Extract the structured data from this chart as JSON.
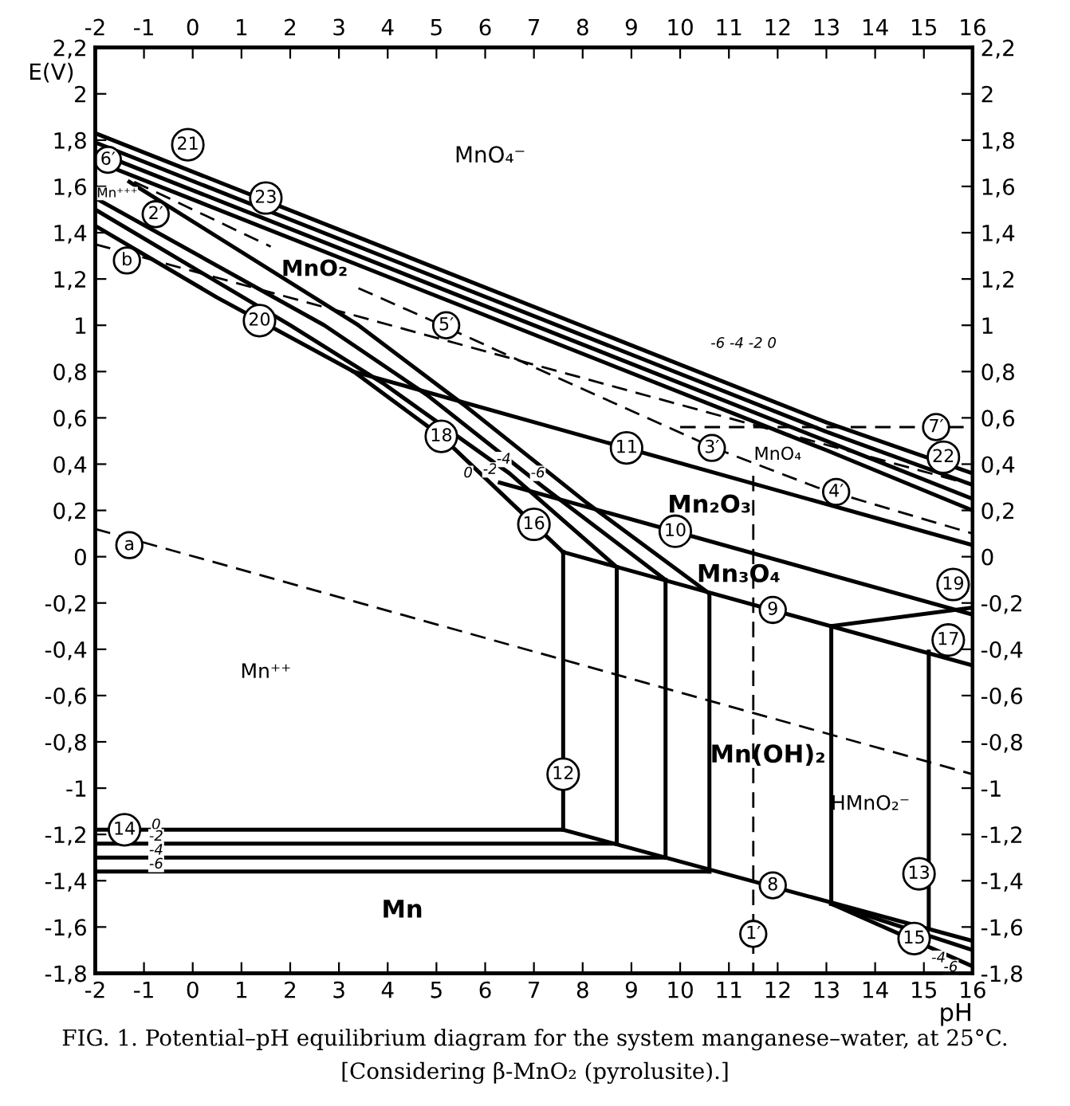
{
  "chart_data": {
    "type": "line",
    "xlabel": "pH",
    "ylabel": "E(V)",
    "xlim": [
      -2,
      16
    ],
    "xticks": [
      -2,
      -1,
      0,
      1,
      2,
      3,
      4,
      5,
      6,
      7,
      8,
      9,
      10,
      11,
      12,
      13,
      14,
      15,
      16
    ],
    "x2lim": [
      -2,
      16
    ],
    "x2ticks": [
      -2,
      -1,
      0,
      1,
      2,
      3,
      4,
      5,
      6,
      7,
      8,
      9,
      10,
      11,
      12,
      13,
      14,
      15,
      16
    ],
    "ylim": [
      -1.8,
      2.2
    ],
    "yticks": [
      {
        "value": -1.8,
        "label": "-1,8"
      },
      {
        "value": -1.6,
        "label": "-1,6"
      },
      {
        "value": -1.4,
        "label": "-1,4"
      },
      {
        "value": -1.2,
        "label": "-1,2"
      },
      {
        "value": -1,
        "label": "-1"
      },
      {
        "value": -0.8,
        "label": "-0,8"
      },
      {
        "value": -0.6,
        "label": "-0,6"
      },
      {
        "value": -0.4,
        "label": "-0,4"
      },
      {
        "value": -0.2,
        "label": "-0,2"
      },
      {
        "value": 0,
        "label": "0"
      },
      {
        "value": 0.2,
        "label": "0,2"
      },
      {
        "value": 0.4,
        "label": "0,4"
      },
      {
        "value": 0.6,
        "label": "0,6"
      },
      {
        "value": 0.8,
        "label": "0,8"
      },
      {
        "value": 1,
        "label": "1"
      },
      {
        "value": 1.2,
        "label": "1,2"
      },
      {
        "value": 1.4,
        "label": "1,4"
      },
      {
        "value": 1.6,
        "label": "1,6"
      },
      {
        "value": 1.8,
        "label": "1,8"
      },
      {
        "value": 2,
        "label": "2"
      },
      {
        "value": 2.2,
        "label": "2,2"
      }
    ],
    "y2lim": [
      -1.8,
      2.2
    ],
    "y2ticks": [
      {
        "value": -1.8,
        "label": "-1,8"
      },
      {
        "value": -1.6,
        "label": "-1,6"
      },
      {
        "value": -1.4,
        "label": "-1,4"
      },
      {
        "value": -1.2,
        "label": "-1,2"
      },
      {
        "value": -1,
        "label": "-1"
      },
      {
        "value": -0.8,
        "label": "-0,8"
      },
      {
        "value": -0.6,
        "label": "-0,6"
      },
      {
        "value": -0.4,
        "label": "-0,4"
      },
      {
        "value": -0.2,
        "label": "-0,2"
      },
      {
        "value": 0,
        "label": "0"
      },
      {
        "value": 0.2,
        "label": "0,2"
      },
      {
        "value": 0.4,
        "label": "0,4"
      },
      {
        "value": 0.6,
        "label": "0,6"
      },
      {
        "value": 0.8,
        "label": "0,8"
      },
      {
        "value": 1,
        "label": "1"
      },
      {
        "value": 1.2,
        "label": "1,2"
      },
      {
        "value": 1.4,
        "label": "1,4"
      },
      {
        "value": 1.6,
        "label": "1,6"
      },
      {
        "value": 1.8,
        "label": "1,8"
      },
      {
        "value": 2,
        "label": "2"
      },
      {
        "value": 2.2,
        "label": "2,2"
      }
    ],
    "grid": false,
    "legend": false,
    "marker": "none",
    "series": [
      {
        "color": "#000000",
        "line_style": "solid",
        "x": [
          -2,
          13,
          16
        ],
        "values": [
          1.83,
          0.58,
          0.36
        ]
      },
      {
        "color": "#000000",
        "line_style": "solid",
        "x": [
          -2,
          13,
          16
        ],
        "values": [
          1.79,
          0.54,
          0.31
        ]
      },
      {
        "color": "#000000",
        "line_style": "solid",
        "x": [
          -2,
          13,
          16
        ],
        "values": [
          1.75,
          0.5,
          0.25
        ]
      },
      {
        "color": "#000000",
        "line_style": "solid",
        "x": [
          -2,
          13,
          16
        ],
        "values": [
          1.71,
          0.46,
          0.2
        ]
      },
      {
        "color": "#000000",
        "line_style": "solid",
        "x": [
          -2,
          0.5,
          3.3,
          5.1,
          7.6
        ],
        "values": [
          1.43,
          1.12,
          0.8,
          0.52,
          0.02
        ]
      },
      {
        "color": "#000000",
        "line_style": "solid",
        "x": [
          -2,
          2,
          3.9,
          6.5,
          8.7
        ],
        "values": [
          1.5,
          1.0,
          0.75,
          0.36,
          -0.045
        ]
      },
      {
        "color": "#000000",
        "line_style": "solid",
        "x": [
          -2,
          2.7,
          4.8,
          7.2,
          9.7
        ],
        "values": [
          1.55,
          1.0,
          0.7,
          0.3,
          -0.1
        ]
      },
      {
        "color": "#000000",
        "line_style": "solid",
        "x": [
          -1.3,
          3.4,
          5.6,
          8.1,
          10.6
        ],
        "values": [
          1.62,
          1.0,
          0.65,
          0.23,
          -0.16
        ]
      },
      {
        "color": "#000000",
        "line_style": "solid",
        "x": [
          3.3,
          16
        ],
        "values": [
          0.8,
          0.05
        ]
      },
      {
        "color": "#000000",
        "line_style": "solid",
        "x": [
          6.3,
          16
        ],
        "values": [
          0.32,
          -0.25
        ]
      },
      {
        "color": "#000000",
        "line_style": "solid",
        "x": [
          7.6,
          16
        ],
        "values": [
          0.02,
          -0.47
        ]
      },
      {
        "color": "#000000",
        "line_style": "solid",
        "x": [
          -2,
          7.6,
          16
        ],
        "values": [
          -1.18,
          -1.18,
          -1.66
        ]
      },
      {
        "color": "#000000",
        "line_style": "solid",
        "x": [
          -2,
          8.7
        ],
        "values": [
          -1.24,
          -1.24
        ]
      },
      {
        "color": "#000000",
        "line_style": "solid",
        "x": [
          -2,
          9.7
        ],
        "values": [
          -1.3,
          -1.3
        ]
      },
      {
        "color": "#000000",
        "line_style": "solid",
        "x": [
          -2,
          10.6
        ],
        "values": [
          -1.36,
          -1.36
        ]
      },
      {
        "color": "#000000",
        "line_style": "solid",
        "x": [
          7.6,
          7.6
        ],
        "values": [
          0.02,
          -1.18
        ]
      },
      {
        "color": "#000000",
        "line_style": "solid",
        "x": [
          8.7,
          8.7
        ],
        "values": [
          -0.045,
          -1.24
        ]
      },
      {
        "color": "#000000",
        "line_style": "solid",
        "x": [
          9.7,
          9.7
        ],
        "values": [
          -0.1,
          -1.3
        ]
      },
      {
        "color": "#000000",
        "line_style": "solid",
        "x": [
          10.6,
          10.6
        ],
        "values": [
          -0.16,
          -1.36
        ]
      },
      {
        "color": "#000000",
        "line_style": "solid",
        "x": [
          13.1,
          13.1
        ],
        "values": [
          -0.3,
          -1.5
        ]
      },
      {
        "color": "#000000",
        "line_style": "solid",
        "x": [
          15.1,
          15.1
        ],
        "values": [
          -0.41,
          -1.6
        ]
      },
      {
        "color": "#000000",
        "line_style": "solid",
        "x": [
          13.1,
          16
        ],
        "values": [
          -0.3,
          -0.22
        ]
      },
      {
        "color": "#000000",
        "line_style": "solid",
        "x": [
          13.1,
          16
        ],
        "values": [
          -1.5,
          -1.7
        ]
      },
      {
        "color": "#000000",
        "line_style": "solid",
        "x": [
          13.1,
          16
        ],
        "values": [
          -1.5,
          -1.77
        ]
      },
      {
        "color": "#000000",
        "line_style": "dashed",
        "x": [
          -2,
          16
        ],
        "values": [
          0.12,
          -0.94
        ]
      },
      {
        "color": "#000000",
        "line_style": "dashed",
        "x": [
          -2,
          16
        ],
        "values": [
          1.35,
          0.31
        ]
      },
      {
        "color": "#000000",
        "line_style": "dashed",
        "x": [
          -1.2,
          1.6,
          2.5,
          3.4,
          4.8,
          7.2,
          10.7,
          12.8,
          16
        ],
        "values": [
          1.62,
          1.34,
          null,
          1.16,
          1.03,
          0.8,
          0.47,
          0.3,
          0.1
        ]
      },
      {
        "color": "#000000",
        "line_style": "dashed",
        "x": [
          10,
          16
        ],
        "values": [
          0.56,
          0.56
        ]
      },
      {
        "color": "#000000",
        "line_style": "dashed",
        "x": [
          11.5,
          11.5
        ],
        "values": [
          0.35,
          -1.8
        ]
      }
    ],
    "annotations": [
      {
        "text": "21",
        "x": -0.1,
        "y": 1.78
      },
      {
        "text": "6′",
        "x": -1.74,
        "y": 1.715
      },
      {
        "text": "2′",
        "x": -0.76,
        "y": 1.48
      },
      {
        "text": "b",
        "x": -1.35,
        "y": 1.28
      },
      {
        "text": "23",
        "x": 1.5,
        "y": 1.55
      },
      {
        "text": "20",
        "x": 1.37,
        "y": 1.02
      },
      {
        "text": "5′",
        "x": 5.2,
        "y": 1.0
      },
      {
        "text": "18",
        "x": 5.1,
        "y": 0.52
      },
      {
        "text": "16",
        "x": 7.0,
        "y": 0.14
      },
      {
        "text": "10",
        "x": 9.9,
        "y": 0.11
      },
      {
        "text": "11",
        "x": 8.9,
        "y": 0.47
      },
      {
        "text": "3′",
        "x": 10.65,
        "y": 0.47
      },
      {
        "text": "4′",
        "x": 13.2,
        "y": 0.28
      },
      {
        "text": "7′",
        "x": 15.25,
        "y": 0.56
      },
      {
        "text": "22",
        "x": 15.4,
        "y": 0.43
      },
      {
        "text": "19",
        "x": 15.6,
        "y": -0.12
      },
      {
        "text": "9",
        "x": 11.9,
        "y": -0.23
      },
      {
        "text": "17",
        "x": 15.5,
        "y": -0.36
      },
      {
        "text": "12",
        "x": 7.6,
        "y": -0.94
      },
      {
        "text": "13",
        "x": 14.9,
        "y": -1.37
      },
      {
        "text": "8",
        "x": 11.9,
        "y": -1.42
      },
      {
        "text": "1′",
        "x": 11.5,
        "y": -1.63
      },
      {
        "text": "15",
        "x": 14.8,
        "y": -1.65
      },
      {
        "text": "a",
        "x": -1.3,
        "y": 0.05
      },
      {
        "text": "14",
        "x": -1.4,
        "y": -1.18
      },
      {
        "text": "0",
        "x": 5.65,
        "y": 0.36
      },
      {
        "text": "-2",
        "x": 6.1,
        "y": 0.375
      },
      {
        "text": "-4",
        "x": 6.38,
        "y": 0.42
      },
      {
        "text": "-6",
        "x": 7.08,
        "y": 0.36
      },
      {
        "text": "0",
        "x": -0.75,
        "y": -1.16
      },
      {
        "text": "-2",
        "x": -0.75,
        "y": -1.21
      },
      {
        "text": "-4",
        "x": -0.75,
        "y": -1.27
      },
      {
        "text": "-6",
        "x": -0.75,
        "y": -1.33
      },
      {
        "text": "-4",
        "x": 15.3,
        "y": -1.735
      },
      {
        "text": "-6",
        "x": 15.55,
        "y": -1.775
      },
      "-6 -4 -2 0",
      "MnO₄⁻",
      "Mn⁺⁺⁺",
      "MnO₂",
      "Mn₂O₃",
      "Mn₃O₄",
      "Mn(OH)₂",
      "HMnO₂⁻",
      "Mn⁺⁺",
      "Mn",
      "MnO₄",
      "FIG. 1. Potential–pH equilibrium diagram for the system manganese–water, at 25°C.",
      "[Considering β-MnO₂ (pyrolusite).]"
    ]
  }
}
